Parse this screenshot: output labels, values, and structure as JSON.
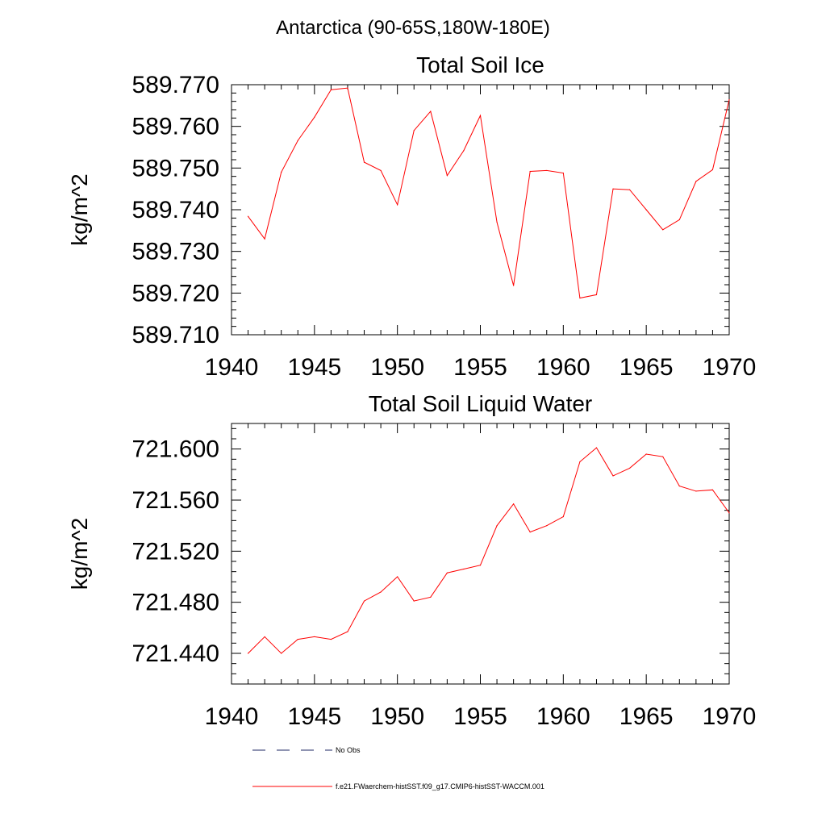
{
  "figure": {
    "title": "Antarctica (90-65S,180W-180E)",
    "legend": [
      {
        "label": "No Obs",
        "color": "#1f2a66",
        "dash": "dashed"
      },
      {
        "label": "f.e21.FWaerchem-histSST.f09_g17.CMIP6-histSST-WACCM.001",
        "color": "#ff0000",
        "dash": "solid"
      }
    ]
  },
  "chart_data": [
    {
      "type": "line",
      "title": "Total Soil Ice",
      "xlabel": "",
      "ylabel": "kg/m^2",
      "xlim": [
        1940,
        1970
      ],
      "ylim": [
        589.71,
        589.77
      ],
      "xticks": [
        1940,
        1945,
        1950,
        1955,
        1960,
        1965,
        1970
      ],
      "xtick_labels": [
        "1940",
        "1945",
        "1950",
        "1955",
        "1960",
        "1965",
        "1970"
      ],
      "yticks": [
        589.71,
        589.72,
        589.73,
        589.74,
        589.75,
        589.76,
        589.77
      ],
      "ytick_labels": [
        "589.710",
        "589.720",
        "589.730",
        "589.740",
        "589.750",
        "589.760",
        "589.770"
      ],
      "grid": false,
      "series": [
        {
          "name": "f.e21.FWaerchem-histSST.f09_g17.CMIP6-histSST-WACCM.001",
          "color": "#ff0000",
          "x": [
            1941,
            1942,
            1943,
            1944,
            1945,
            1946,
            1947,
            1948,
            1949,
            1950,
            1951,
            1952,
            1953,
            1954,
            1955,
            1956,
            1957,
            1958,
            1959,
            1960,
            1961,
            1962,
            1963,
            1964,
            1965,
            1966,
            1967,
            1968,
            1969,
            1970
          ],
          "y": [
            589.7384,
            589.733,
            589.749,
            589.7566,
            589.7622,
            589.7688,
            589.7692,
            589.7514,
            589.7494,
            589.7412,
            589.759,
            589.7636,
            589.7482,
            589.7542,
            589.7626,
            589.737,
            589.7218,
            589.7492,
            589.7494,
            589.7488,
            589.7188,
            589.7196,
            589.745,
            589.7448,
            589.74,
            589.7352,
            589.7376,
            589.7468,
            589.7496,
            589.7664
          ]
        }
      ]
    },
    {
      "type": "line",
      "title": "Total Soil Liquid Water",
      "xlabel": "",
      "ylabel": "kg/m^2",
      "xlim": [
        1940,
        1970
      ],
      "ylim": [
        721.416,
        721.62
      ],
      "xticks": [
        1940,
        1945,
        1950,
        1955,
        1960,
        1965,
        1970
      ],
      "xtick_labels": [
        "1940",
        "1945",
        "1950",
        "1955",
        "1960",
        "1965",
        "1970"
      ],
      "yticks": [
        721.44,
        721.48,
        721.52,
        721.56,
        721.6
      ],
      "ytick_labels": [
        "721.440",
        "721.480",
        "721.520",
        "721.560",
        "721.600"
      ],
      "grid": false,
      "series": [
        {
          "name": "f.e21.FWaerchem-histSST.f09_g17.CMIP6-histSST-WACCM.001",
          "color": "#ff0000",
          "x": [
            1941,
            1942,
            1943,
            1944,
            1945,
            1946,
            1947,
            1948,
            1949,
            1950,
            1951,
            1952,
            1953,
            1954,
            1955,
            1956,
            1957,
            1958,
            1959,
            1960,
            1961,
            1962,
            1963,
            1964,
            1965,
            1966,
            1967,
            1968,
            1969,
            1970
          ],
          "y": [
            721.44,
            721.453,
            721.44,
            721.451,
            721.453,
            721.451,
            721.457,
            721.481,
            721.488,
            721.5,
            721.481,
            721.484,
            721.503,
            721.506,
            721.509,
            721.54,
            721.557,
            721.535,
            721.54,
            721.547,
            721.59,
            721.601,
            721.579,
            721.585,
            721.596,
            721.594,
            721.571,
            721.567,
            721.568,
            721.55
          ]
        }
      ]
    }
  ]
}
